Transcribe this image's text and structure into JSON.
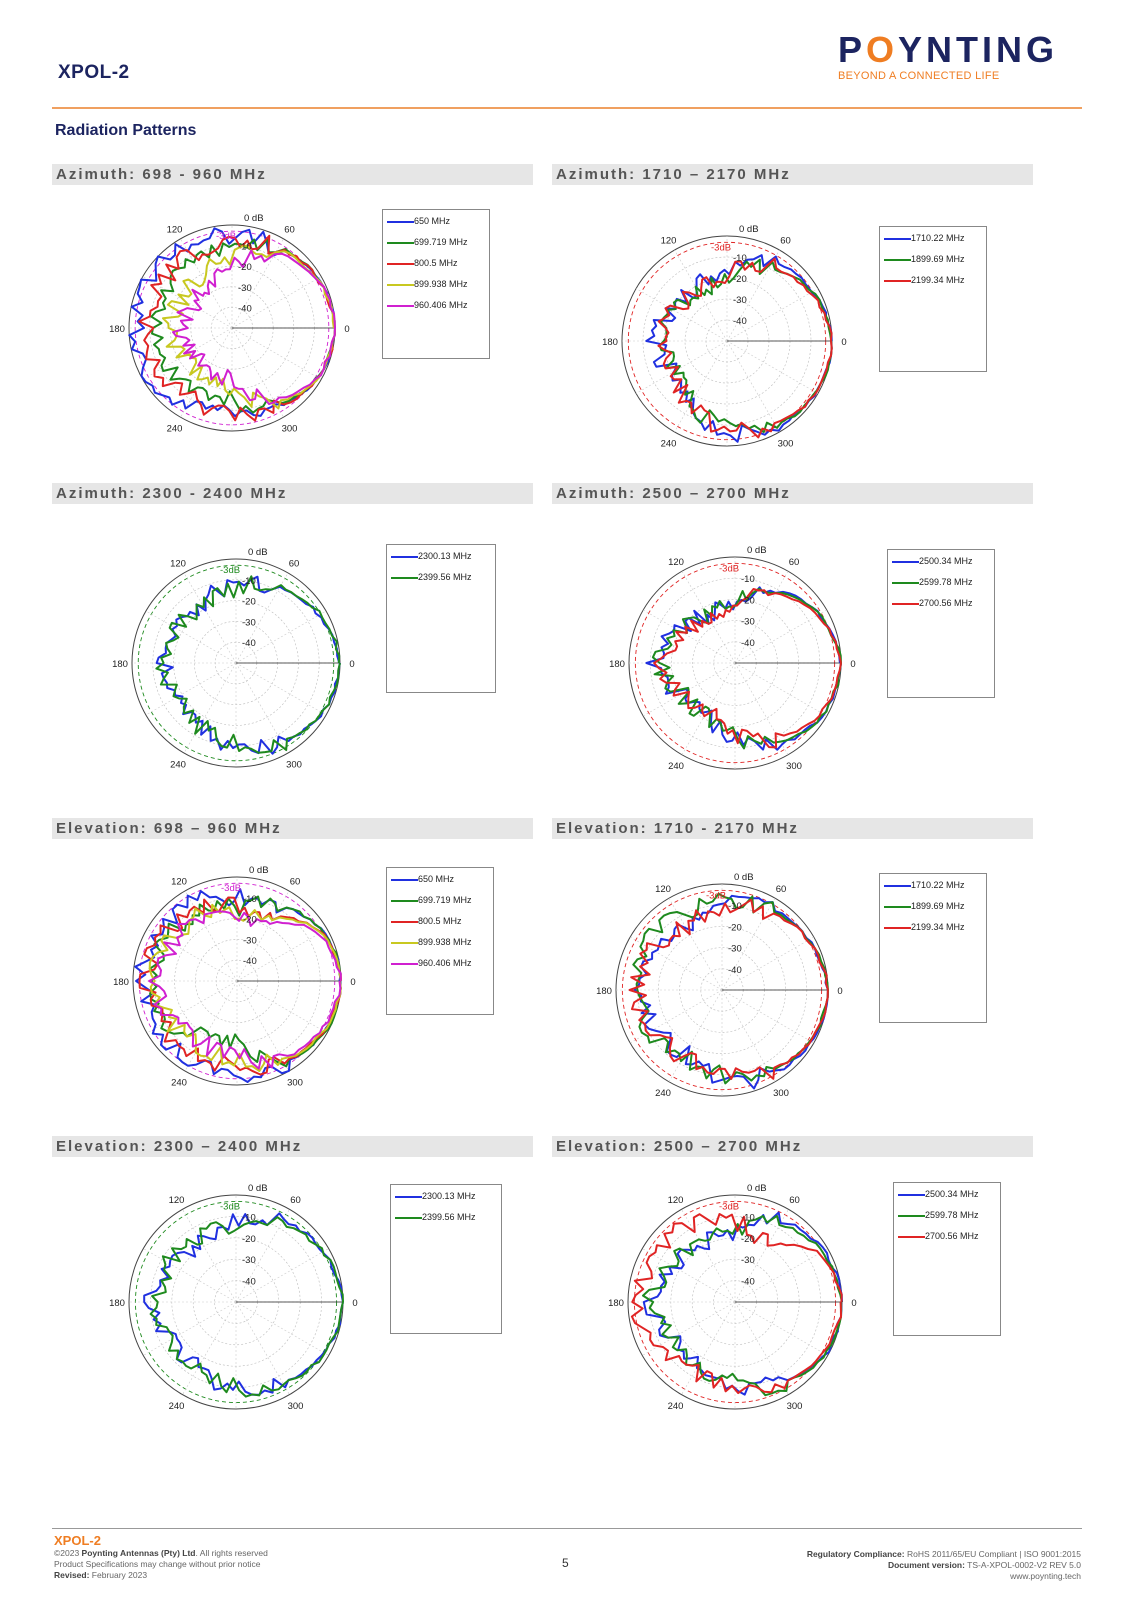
{
  "header": {
    "product": "XPOL-2",
    "logo_text_1": "P",
    "logo_text_o": "O",
    "logo_text_2": "YNTING",
    "logo_tagline": "BEYOND A CONNECTED LIFE"
  },
  "section_title": "Radiation Patterns",
  "colors": {
    "blue": "#2030e0",
    "green": "#1e8a1e",
    "red": "#e02424",
    "yellow": "#c8c820",
    "magenta": "#d020d0",
    "accent": "#ef7d22",
    "navy": "#1c2460"
  },
  "polar_labels": {
    "zero_db": "0 dB",
    "minus3": "-3dB",
    "rings": [
      "-10",
      "-20",
      "-30",
      "-40"
    ],
    "angles": [
      "0",
      "60",
      "120",
      "180",
      "240",
      "300"
    ]
  },
  "chart_data": [
    {
      "type": "polar",
      "title": "Azimuth:  698 - 960 MHz",
      "r_range_db": [
        -50,
        0
      ],
      "legend": [
        "650 MHz",
        "699.719 MHz",
        "800.5 MHz",
        "899.938 MHz",
        "960.406 MHz"
      ],
      "legend_colors": [
        "blue",
        "green",
        "red",
        "yellow",
        "magenta"
      ],
      "reference_color": "magenta",
      "series": [
        {
          "name": "650 MHz",
          "color": "blue",
          "angles_deg": [
            0,
            30,
            60,
            90,
            120,
            150,
            180,
            210,
            240,
            270,
            300,
            330
          ],
          "gain_db": [
            0,
            -2,
            -5,
            -6,
            -4,
            -3,
            -3,
            -3,
            -7,
            -12,
            -6,
            -2
          ]
        },
        {
          "name": "699.719 MHz",
          "color": "green",
          "angles_deg": [
            0,
            30,
            60,
            90,
            120,
            150,
            180,
            210,
            240,
            270,
            300,
            330
          ],
          "gain_db": [
            0,
            -2,
            -4,
            -10,
            -13,
            -15,
            -12,
            -14,
            -16,
            -15,
            -6,
            -2
          ]
        },
        {
          "name": "800.5 MHz",
          "color": "red",
          "angles_deg": [
            0,
            30,
            60,
            90,
            120,
            150,
            180,
            210,
            240,
            270,
            300,
            330
          ],
          "gain_db": [
            0,
            -2,
            -5,
            -8,
            -9,
            -10,
            -8,
            -10,
            -11,
            -9,
            -5,
            -2
          ]
        },
        {
          "name": "899.938 MHz",
          "color": "yellow",
          "angles_deg": [
            0,
            30,
            60,
            90,
            120,
            150,
            180,
            210,
            240,
            270,
            300,
            330
          ],
          "gain_db": [
            0,
            -2,
            -6,
            -15,
            -20,
            -22,
            -20,
            -22,
            -24,
            -20,
            -8,
            -2
          ]
        },
        {
          "name": "960.406 MHz",
          "color": "magenta",
          "angles_deg": [
            0,
            30,
            60,
            90,
            120,
            150,
            180,
            210,
            240,
            270,
            300,
            330
          ],
          "gain_db": [
            0,
            -2,
            -8,
            -20,
            -26,
            -28,
            -25,
            -26,
            -28,
            -25,
            -10,
            -2
          ]
        }
      ]
    },
    {
      "type": "polar",
      "title": "Azimuth: 1710 – 2170 MHz",
      "r_range_db": [
        -50,
        0
      ],
      "legend": [
        "1710.22 MHz",
        "1899.69 MHz",
        "2199.34 MHz"
      ],
      "legend_colors": [
        "blue",
        "green",
        "red"
      ],
      "reference_color": "red",
      "series": [
        {
          "name": "1710.22 MHz",
          "color": "blue",
          "angles_deg": [
            0,
            30,
            60,
            90,
            120,
            150,
            180,
            210,
            240,
            270,
            300,
            330
          ],
          "gain_db": [
            0,
            -3,
            -6,
            -15,
            -22,
            -20,
            -16,
            -20,
            -14,
            -7,
            -3,
            -1
          ]
        },
        {
          "name": "1899.69 MHz",
          "color": "green",
          "angles_deg": [
            0,
            30,
            60,
            90,
            120,
            150,
            180,
            210,
            240,
            270,
            300,
            330
          ],
          "gain_db": [
            0,
            -3,
            -10,
            -20,
            -24,
            -22,
            -20,
            -22,
            -16,
            -8,
            -3,
            -1
          ]
        },
        {
          "name": "2199.34 MHz",
          "color": "red",
          "angles_deg": [
            0,
            30,
            60,
            90,
            120,
            150,
            180,
            210,
            240,
            270,
            300,
            330
          ],
          "gain_db": [
            0,
            -4,
            -9,
            -18,
            -23,
            -21,
            -17,
            -21,
            -15,
            -8,
            -4,
            -1
          ]
        }
      ]
    },
    {
      "type": "polar",
      "title": "Azimuth:  2300 - 2400 MHz",
      "r_range_db": [
        -50,
        0
      ],
      "legend": [
        "2300.13 MHz",
        "2399.56 MHz"
      ],
      "legend_colors": [
        "blue",
        "green"
      ],
      "reference_color": "green",
      "series": [
        {
          "name": "2300.13 MHz",
          "color": "blue",
          "angles_deg": [
            0,
            30,
            60,
            90,
            120,
            150,
            180,
            210,
            240,
            270,
            300,
            330
          ],
          "gain_db": [
            0,
            -4,
            -8,
            -13,
            -17,
            -18,
            -16,
            -18,
            -16,
            -10,
            -6,
            -2
          ]
        },
        {
          "name": "2399.56 MHz",
          "color": "green",
          "angles_deg": [
            0,
            30,
            60,
            90,
            120,
            150,
            180,
            210,
            240,
            270,
            300,
            330
          ],
          "gain_db": [
            0,
            -3,
            -8,
            -14,
            -18,
            -17,
            -15,
            -17,
            -15,
            -11,
            -6,
            -2
          ]
        }
      ]
    },
    {
      "type": "polar",
      "title": "Azimuth: 2500 – 2700 MHz",
      "r_range_db": [
        -50,
        0
      ],
      "legend": [
        "2500.34 MHz",
        "2599.78 MHz",
        "2700.56 MHz"
      ],
      "legend_colors": [
        "blue",
        "green",
        "red"
      ],
      "reference_color": "red",
      "series": [
        {
          "name": "2500.34 MHz",
          "color": "blue",
          "angles_deg": [
            0,
            30,
            60,
            90,
            120,
            150,
            180,
            210,
            240,
            270,
            300,
            330
          ],
          "gain_db": [
            0,
            -4,
            -10,
            -20,
            -24,
            -20,
            -12,
            -20,
            -24,
            -14,
            -6,
            -2
          ]
        },
        {
          "name": "2599.78 MHz",
          "color": "green",
          "angles_deg": [
            0,
            30,
            60,
            90,
            120,
            150,
            180,
            210,
            240,
            270,
            300,
            330
          ],
          "gain_db": [
            0,
            -4,
            -11,
            -22,
            -24,
            -20,
            -14,
            -21,
            -23,
            -15,
            -6,
            -2
          ]
        },
        {
          "name": "2700.56 MHz",
          "color": "red",
          "angles_deg": [
            0,
            30,
            60,
            90,
            120,
            150,
            180,
            210,
            240,
            270,
            300,
            330
          ],
          "gain_db": [
            0,
            -5,
            -12,
            -24,
            -25,
            -22,
            -16,
            -22,
            -25,
            -17,
            -9,
            -3
          ]
        }
      ]
    },
    {
      "type": "polar",
      "title": "Elevation: 698 – 960 MHz",
      "r_range_db": [
        -50,
        0
      ],
      "legend": [
        "650 MHz",
        "699.719 MHz",
        "800.5 MHz",
        "899.938 MHz",
        "960.406 MHz"
      ],
      "legend_colors": [
        "blue",
        "green",
        "red",
        "yellow",
        "magenta"
      ],
      "reference_color": "magenta",
      "series": [
        {
          "name": "650 MHz",
          "color": "blue",
          "angles_deg": [
            0,
            30,
            60,
            90,
            120,
            150,
            180,
            210,
            240,
            270,
            300,
            330
          ],
          "gain_db": [
            0,
            -2,
            -8,
            -10,
            -7,
            -5,
            -5,
            -5,
            -6,
            -6,
            -4,
            -2
          ]
        },
        {
          "name": "699.719 MHz",
          "color": "green",
          "angles_deg": [
            0,
            30,
            60,
            90,
            120,
            150,
            180,
            210,
            240,
            270,
            300,
            330
          ],
          "gain_db": [
            0,
            -2,
            -8,
            -15,
            -12,
            -10,
            -8,
            -10,
            -22,
            -20,
            -5,
            -1
          ]
        },
        {
          "name": "800.5 MHz",
          "color": "red",
          "angles_deg": [
            0,
            30,
            60,
            90,
            120,
            150,
            180,
            210,
            240,
            270,
            300,
            330
          ],
          "gain_db": [
            0,
            -3,
            -14,
            -14,
            -10,
            -8,
            -7,
            -8,
            -10,
            -9,
            -5,
            -2
          ]
        },
        {
          "name": "899.938 MHz",
          "color": "yellow",
          "angles_deg": [
            0,
            30,
            60,
            90,
            120,
            150,
            180,
            210,
            240,
            270,
            300,
            330
          ],
          "gain_db": [
            0,
            -3,
            -15,
            -18,
            -14,
            -12,
            -10,
            -12,
            -14,
            -12,
            -6,
            -2
          ]
        },
        {
          "name": "960.406 MHz",
          "color": "magenta",
          "angles_deg": [
            0,
            30,
            60,
            90,
            120,
            150,
            180,
            210,
            240,
            270,
            300,
            330
          ],
          "gain_db": [
            0,
            -4,
            -18,
            -20,
            -16,
            -14,
            -12,
            -14,
            -16,
            -14,
            -7,
            -3
          ]
        }
      ]
    },
    {
      "type": "polar",
      "title": "Elevation: 1710 - 2170 MHz",
      "r_range_db": [
        -50,
        0
      ],
      "legend": [
        "1710.22 MHz",
        "1899.69 MHz",
        "2199.34 MHz"
      ],
      "legend_colors": [
        "blue",
        "green",
        "red"
      ],
      "reference_color": "red",
      "series": [
        {
          "name": "1710.22 MHz",
          "color": "blue",
          "angles_deg": [
            0,
            30,
            60,
            90,
            120,
            150,
            180,
            210,
            240,
            270,
            300,
            330
          ],
          "gain_db": [
            0,
            -3,
            -5,
            -10,
            -16,
            -14,
            -12,
            -14,
            -16,
            -8,
            -4,
            -1
          ]
        },
        {
          "name": "1899.69 MHz",
          "color": "green",
          "angles_deg": [
            0,
            30,
            60,
            90,
            120,
            150,
            180,
            210,
            240,
            270,
            300,
            330
          ],
          "gain_db": [
            0,
            -3,
            -6,
            -8,
            -10,
            -8,
            -9,
            -10,
            -14,
            -10,
            -5,
            -2
          ]
        },
        {
          "name": "2199.34 MHz",
          "color": "red",
          "angles_deg": [
            0,
            30,
            60,
            90,
            120,
            150,
            180,
            210,
            240,
            270,
            300,
            330
          ],
          "gain_db": [
            0,
            -3,
            -7,
            -12,
            -16,
            -12,
            -10,
            -12,
            -14,
            -12,
            -6,
            -2
          ]
        }
      ]
    },
    {
      "type": "polar",
      "title": "Elevation: 2300 – 2400 MHz",
      "r_range_db": [
        -50,
        0
      ],
      "legend": [
        "2300.13 MHz",
        "2399.56 MHz"
      ],
      "legend_colors": [
        "blue",
        "green"
      ],
      "reference_color": "green",
      "series": [
        {
          "name": "2300.13 MHz",
          "color": "blue",
          "angles_deg": [
            0,
            30,
            60,
            90,
            120,
            150,
            180,
            210,
            240,
            270,
            300,
            330
          ],
          "gain_db": [
            0,
            -3,
            -6,
            -12,
            -18,
            -16,
            -10,
            -16,
            -14,
            -10,
            -6,
            -2
          ]
        },
        {
          "name": "2399.56 MHz",
          "color": "green",
          "angles_deg": [
            0,
            30,
            60,
            90,
            120,
            150,
            180,
            210,
            240,
            270,
            300,
            330
          ],
          "gain_db": [
            0,
            -3,
            -8,
            -14,
            -16,
            -14,
            -12,
            -14,
            -13,
            -10,
            -6,
            -2
          ]
        }
      ]
    },
    {
      "type": "polar",
      "title": "Elevation: 2500 – 2700 MHz",
      "r_range_db": [
        -50,
        0
      ],
      "legend": [
        "2500.34 MHz",
        "2599.78 MHz",
        "2700.56 MHz"
      ],
      "legend_colors": [
        "blue",
        "green",
        "red"
      ],
      "reference_color": "red",
      "series": [
        {
          "name": "2500.34 MHz",
          "color": "blue",
          "angles_deg": [
            0,
            30,
            60,
            90,
            120,
            150,
            180,
            210,
            240,
            270,
            300,
            330
          ],
          "gain_db": [
            0,
            -2,
            -6,
            -18,
            -20,
            -16,
            -10,
            -16,
            -16,
            -12,
            -6,
            -1
          ]
        },
        {
          "name": "2599.78 MHz",
          "color": "green",
          "angles_deg": [
            0,
            30,
            60,
            90,
            120,
            150,
            180,
            210,
            240,
            270,
            300,
            330
          ],
          "gain_db": [
            0,
            -3,
            -8,
            -18,
            -18,
            -16,
            -10,
            -16,
            -16,
            -12,
            -6,
            -1
          ]
        },
        {
          "name": "2700.56 MHz",
          "color": "red",
          "angles_deg": [
            0,
            30,
            60,
            90,
            120,
            150,
            180,
            210,
            240,
            270,
            300,
            330
          ],
          "gain_db": [
            0,
            -4,
            -20,
            -12,
            -8,
            -6,
            -5,
            -8,
            -12,
            -10,
            -6,
            -2
          ]
        }
      ]
    }
  ],
  "footer": {
    "product": "XPOL-2",
    "copyright_prefix": "©2023 ",
    "company": "Poynting Antennas (Pty) Ltd",
    "copyright_suffix": ". All rights reserved",
    "spec_notice": "Product Specifications may change without prior notice",
    "revised_label": "Revised:",
    "revised_value": " February 2023",
    "page_number": "5",
    "compliance_label": "Regulatory Compliance:",
    "compliance_value": " RoHS 2011/65/EU Compliant | ISO 9001:2015",
    "doc_version_label": "Document version:",
    "doc_version_value": " TS-A-XPOL-0002-V2 REV 5.0",
    "website": "www.poynting.tech"
  }
}
